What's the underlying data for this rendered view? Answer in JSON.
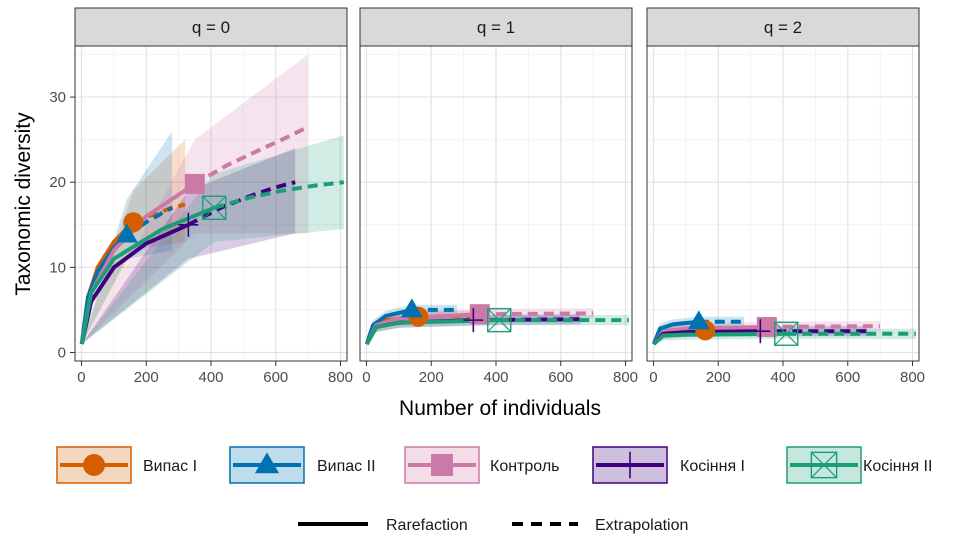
{
  "chart_data": {
    "type": "line",
    "facets": [
      "q = 0",
      "q = 1",
      "q = 2"
    ],
    "xlabel": "Number of individuals",
    "ylabel": "Taxonomic diversity",
    "xlim": [
      -20,
      820
    ],
    "ylim": [
      -1,
      36
    ],
    "x_ticks": [
      0,
      200,
      400,
      600,
      800
    ],
    "y_ticks": [
      0,
      10,
      20,
      30
    ],
    "grid": true,
    "legend_position": "bottom",
    "series": [
      {
        "name": "Випас I",
        "color": "#D55E00",
        "marker": "circle",
        "observed": {
          "q0": [
            160,
            15.3
          ],
          "q1": [
            160,
            4.2
          ],
          "q2": [
            160,
            2.6
          ]
        },
        "curves": {
          "q0": {
            "x": [
              1,
              20,
              50,
              100,
              160
            ],
            "y": [
              1,
              6.5,
              10,
              13,
              15.3
            ]
          },
          "q0_extrap": {
            "x": [
              160,
              220,
              280,
              320
            ],
            "y": [
              15.3,
              16.2,
              17,
              17.4
            ]
          },
          "q1": {
            "x": [
              1,
              20,
              60,
              160,
              320
            ],
            "y": [
              1,
              3,
              3.8,
              4.2,
              4.3
            ]
          },
          "q2": {
            "x": [
              1,
              20,
              60,
              160,
              320
            ],
            "y": [
              1,
              2.2,
              2.5,
              2.6,
              2.6
            ]
          }
        },
        "ci_q0": {
          "x": [
            1,
            160,
            320
          ],
          "lower": [
            1,
            12,
            13
          ],
          "upper": [
            1,
            19,
            25
          ]
        }
      },
      {
        "name": "Випас II",
        "color": "#0072B2",
        "marker": "triangle",
        "observed": {
          "q0": [
            140,
            13.8
          ],
          "q1": [
            140,
            5
          ],
          "q2": [
            140,
            3.6
          ]
        },
        "curves": {
          "q0": {
            "x": [
              1,
              20,
              50,
              100,
              140
            ],
            "y": [
              1,
              6.5,
              9.5,
              12.3,
              13.8
            ]
          },
          "q0_extrap": {
            "x": [
              140,
              200,
              250,
              280
            ],
            "y": [
              13.8,
              15.3,
              16.4,
              17
            ]
          },
          "q1": {
            "x": [
              1,
              20,
              60,
              140,
              280
            ],
            "y": [
              1,
              3.2,
              4.3,
              5,
              5
            ]
          },
          "q2": {
            "x": [
              1,
              20,
              60,
              140,
              280
            ],
            "y": [
              1,
              2.8,
              3.3,
              3.6,
              3.6
            ]
          }
        },
        "ci_q0": {
          "x": [
            1,
            140,
            280
          ],
          "lower": [
            1,
            11,
            12
          ],
          "upper": [
            1,
            18,
            26
          ]
        }
      },
      {
        "name": "Контроль",
        "color": "#CC79A7",
        "marker": "square",
        "observed": {
          "q0": [
            350,
            19.8
          ],
          "q1": [
            350,
            4.5
          ],
          "q2": [
            350,
            3
          ]
        },
        "curves": {
          "q0": {
            "x": [
              1,
              30,
              100,
              200,
              350
            ],
            "y": [
              1,
              7,
              12,
              16,
              19.8
            ]
          },
          "q0_extrap": {
            "x": [
              350,
              450,
              550,
              620,
              700
            ],
            "y": [
              19.8,
              22,
              23.8,
              25,
              26.5
            ]
          },
          "q1": {
            "x": [
              1,
              30,
              100,
              350,
              700
            ],
            "y": [
              1,
              3.2,
              4,
              4.5,
              4.6
            ]
          },
          "q2": {
            "x": [
              1,
              30,
              100,
              350,
              700
            ],
            "y": [
              1,
              2.4,
              2.8,
              3,
              3.1
            ]
          }
        },
        "ci_q0": {
          "x": [
            1,
            350,
            700
          ],
          "lower": [
            1,
            14,
            14
          ],
          "upper": [
            1,
            25,
            35
          ]
        }
      },
      {
        "name": "Косіння I",
        "color": "#3F007D",
        "marker": "plus",
        "observed": {
          "q0": [
            330,
            15
          ],
          "q1": [
            330,
            3.8
          ],
          "q2": [
            330,
            2.5
          ]
        },
        "curves": {
          "q0": {
            "x": [
              1,
              30,
              100,
              200,
              330
            ],
            "y": [
              1,
              6,
              10,
              12.8,
              15
            ]
          },
          "q0_extrap": {
            "x": [
              330,
              430,
              530,
              600,
              660
            ],
            "y": [
              15,
              17,
              18.5,
              19.4,
              20
            ]
          },
          "q1": {
            "x": [
              1,
              30,
              100,
              330,
              660
            ],
            "y": [
              1,
              3,
              3.5,
              3.8,
              3.9
            ]
          },
          "q2": {
            "x": [
              1,
              30,
              100,
              330,
              660
            ],
            "y": [
              1,
              2.2,
              2.4,
              2.5,
              2.5
            ]
          }
        },
        "ci_q0": {
          "x": [
            1,
            330,
            660
          ],
          "lower": [
            1,
            11,
            14
          ],
          "upper": [
            1,
            19,
            24
          ]
        }
      },
      {
        "name": "Косіння II",
        "color": "#1B9E77",
        "marker": "square-cross",
        "observed": {
          "q0": [
            410,
            17
          ],
          "q1": [
            410,
            3.8
          ],
          "q2": [
            410,
            2.2
          ]
        },
        "curves": {
          "q0": {
            "x": [
              1,
              30,
              100,
              250,
              410
            ],
            "y": [
              1,
              7,
              11,
              14.5,
              17
            ]
          },
          "q0_extrap": {
            "x": [
              410,
              520,
              620,
              720,
              810
            ],
            "y": [
              17,
              18.2,
              19,
              19.6,
              20
            ]
          },
          "q1": {
            "x": [
              1,
              30,
              100,
              410,
              810
            ],
            "y": [
              1,
              3,
              3.5,
              3.8,
              3.8
            ]
          },
          "q2": {
            "x": [
              1,
              30,
              100,
              410,
              810
            ],
            "y": [
              1,
              2,
              2.1,
              2.2,
              2.2
            ]
          }
        },
        "ci_q0": {
          "x": [
            1,
            410,
            810
          ],
          "lower": [
            1,
            13,
            14.5
          ],
          "upper": [
            1,
            21,
            25.5
          ]
        }
      }
    ],
    "linetype_legend": [
      {
        "label": "Rarefaction",
        "style": "solid"
      },
      {
        "label": "Extrapolation",
        "style": "dashed"
      }
    ]
  }
}
